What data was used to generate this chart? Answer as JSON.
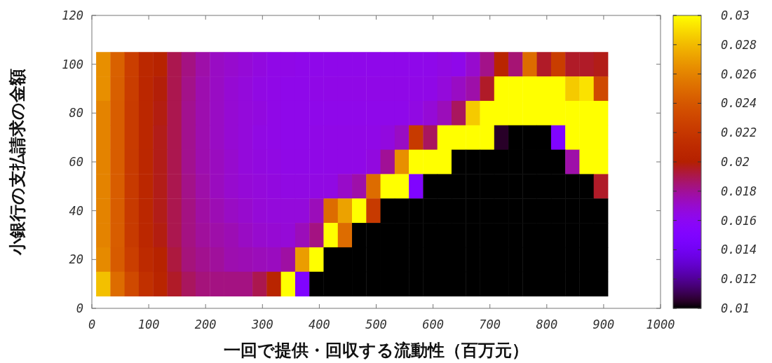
{
  "chart_data": {
    "type": "heatmap",
    "xlabel": "一回で提供・回収する流動性（百万元）",
    "ylabel": "小銀行の支払請求の金額",
    "x": [
      20,
      45,
      70,
      95,
      120,
      145,
      170,
      195,
      220,
      245,
      270,
      295,
      320,
      345,
      370,
      395,
      420,
      445,
      470,
      495,
      520,
      545,
      570,
      595,
      620,
      645,
      670,
      695,
      720,
      745,
      770,
      795,
      820,
      845,
      870,
      895
    ],
    "y": [
      100,
      90,
      80,
      70,
      60,
      50,
      40,
      30,
      20,
      10
    ],
    "cells": [
      [
        0.0265,
        0.0245,
        0.0225,
        0.0208,
        0.0203,
        0.019,
        0.0183,
        0.0177,
        0.0172,
        0.017,
        0.0168,
        0.0166,
        0.0164,
        0.0164,
        0.0163,
        0.0163,
        0.0163,
        0.0163,
        0.0163,
        0.0163,
        0.0163,
        0.0163,
        0.0163,
        0.0163,
        0.0165,
        0.0163,
        0.017,
        0.0182,
        0.0205,
        0.0185,
        0.025,
        0.0195,
        0.0224,
        0.0195,
        0.0195,
        0.0197
      ],
      [
        0.0265,
        0.0244,
        0.0224,
        0.0207,
        0.0199,
        0.019,
        0.0182,
        0.0176,
        0.0172,
        0.0169,
        0.0167,
        0.0165,
        0.0164,
        0.0163,
        0.0163,
        0.0164,
        0.0164,
        0.0164,
        0.0164,
        0.0164,
        0.0164,
        0.0164,
        0.0164,
        0.0164,
        0.0167,
        0.0172,
        0.0177,
        0.0195,
        0.03,
        0.03,
        0.03,
        0.03,
        0.03,
        0.0285,
        0.0292,
        0.0232
      ],
      [
        0.026,
        0.0243,
        0.0223,
        0.0207,
        0.0198,
        0.019,
        0.0181,
        0.0176,
        0.0172,
        0.0169,
        0.0167,
        0.0166,
        0.0164,
        0.0163,
        0.0163,
        0.0163,
        0.0163,
        0.0163,
        0.0163,
        0.0163,
        0.0163,
        0.0163,
        0.0165,
        0.0168,
        0.0174,
        0.0188,
        0.0285,
        0.03,
        0.03,
        0.03,
        0.03,
        0.03,
        0.03,
        0.03,
        0.03,
        0.03
      ],
      [
        0.026,
        0.0243,
        0.0223,
        0.0207,
        0.0197,
        0.019,
        0.0181,
        0.0176,
        0.0172,
        0.0169,
        0.0167,
        0.0165,
        0.0164,
        0.0163,
        0.0163,
        0.0164,
        0.0164,
        0.0164,
        0.0164,
        0.0164,
        0.0166,
        0.0172,
        0.0222,
        0.0188,
        0.03,
        0.03,
        0.03,
        0.03,
        0.0105,
        0.01,
        0.01,
        0.01,
        0.015,
        0.03,
        0.03,
        0.03
      ],
      [
        0.026,
        0.0243,
        0.0222,
        0.0207,
        0.0197,
        0.019,
        0.0181,
        0.0176,
        0.0173,
        0.017,
        0.0167,
        0.0166,
        0.0165,
        0.0164,
        0.0164,
        0.0164,
        0.0164,
        0.0164,
        0.0164,
        0.0166,
        0.018,
        0.0265,
        0.03,
        0.03,
        0.03,
        0.01,
        0.01,
        0.01,
        0.01,
        0.01,
        0.01,
        0.01,
        0.01,
        0.0177,
        0.03,
        0.03
      ],
      [
        0.026,
        0.0243,
        0.0222,
        0.0207,
        0.0197,
        0.019,
        0.0182,
        0.0177,
        0.0173,
        0.017,
        0.0168,
        0.0167,
        0.0166,
        0.0165,
        0.0165,
        0.0165,
        0.0165,
        0.0171,
        0.0177,
        0.025,
        0.03,
        0.03,
        0.015,
        0.01,
        0.01,
        0.01,
        0.01,
        0.01,
        0.01,
        0.01,
        0.01,
        0.01,
        0.01,
        0.01,
        0.01,
        0.0195
      ],
      [
        0.026,
        0.0243,
        0.0222,
        0.0207,
        0.0197,
        0.019,
        0.0183,
        0.0178,
        0.0175,
        0.0172,
        0.017,
        0.0168,
        0.0167,
        0.0167,
        0.0167,
        0.0174,
        0.025,
        0.0272,
        0.03,
        0.0222,
        0.01,
        0.01,
        0.01,
        0.01,
        0.01,
        0.01,
        0.01,
        0.01,
        0.01,
        0.01,
        0.01,
        0.01,
        0.01,
        0.01,
        0.01,
        0.01
      ],
      [
        0.026,
        0.0243,
        0.0222,
        0.0207,
        0.0198,
        0.019,
        0.0183,
        0.0179,
        0.0177,
        0.0175,
        0.0172,
        0.017,
        0.0169,
        0.0168,
        0.0174,
        0.0183,
        0.03,
        0.025,
        0.01,
        0.01,
        0.01,
        0.01,
        0.01,
        0.01,
        0.01,
        0.01,
        0.01,
        0.01,
        0.01,
        0.01,
        0.01,
        0.01,
        0.01,
        0.01,
        0.01,
        0.01
      ],
      [
        0.0263,
        0.0242,
        0.0225,
        0.021,
        0.0203,
        0.0192,
        0.0184,
        0.0181,
        0.0179,
        0.0176,
        0.0175,
        0.0174,
        0.0173,
        0.0178,
        0.027,
        0.03,
        0.01,
        0.01,
        0.01,
        0.01,
        0.01,
        0.01,
        0.01,
        0.01,
        0.01,
        0.01,
        0.01,
        0.01,
        0.01,
        0.01,
        0.01,
        0.01,
        0.01,
        0.01,
        0.01,
        0.01
      ],
      [
        0.0282,
        0.025,
        0.0232,
        0.0215,
        0.0205,
        0.0195,
        0.0188,
        0.0184,
        0.0183,
        0.0183,
        0.0183,
        0.019,
        0.0205,
        0.03,
        0.015,
        0.01,
        0.01,
        0.01,
        0.01,
        0.01,
        0.01,
        0.01,
        0.01,
        0.01,
        0.01,
        0.01,
        0.01,
        0.01,
        0.01,
        0.01,
        0.01,
        0.01,
        0.01,
        0.01,
        0.01,
        0.01
      ]
    ],
    "xlim": [
      0,
      1000
    ],
    "xticks": [
      0,
      100,
      200,
      300,
      400,
      500,
      600,
      700,
      800,
      900,
      1000
    ],
    "ylim": [
      0,
      120
    ],
    "yticks": [
      0,
      20,
      40,
      60,
      80,
      100,
      120
    ],
    "clim": [
      0.01,
      0.03
    ],
    "cticks": [
      0.01,
      0.012,
      0.014,
      0.016,
      0.018,
      0.02,
      0.022,
      0.024,
      0.026,
      0.028,
      0.03
    ]
  }
}
